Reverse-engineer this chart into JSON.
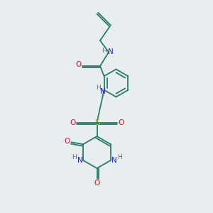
{
  "bg_color": "#e8edf0",
  "atom_colors": {
    "C": "#2d7a6a",
    "N": "#2222cc",
    "O": "#cc1111",
    "S": "#bbbb00",
    "H": "#557070",
    "bond": "#2d7a6a"
  }
}
